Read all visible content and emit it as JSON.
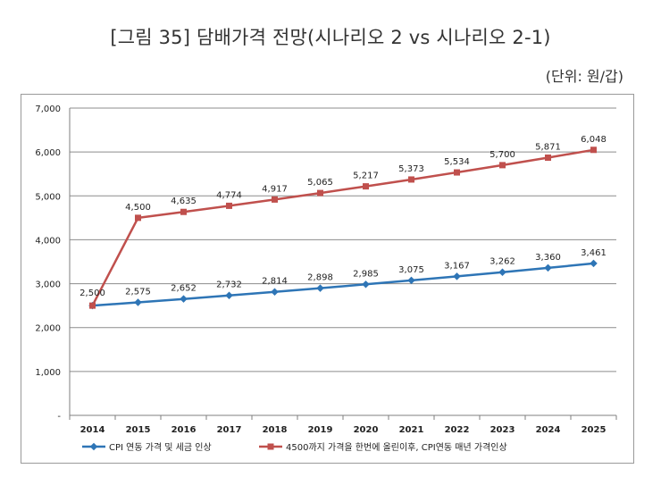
{
  "header": {
    "title": "[그림 35] 담배가격 전망(시나리오 2 vs 시나리오 2-1)",
    "unit": "(단위: 원/갑)"
  },
  "colors": {
    "series1": "#2E75B6",
    "series2": "#C0504D",
    "grid": "#8c8c8c",
    "axis": "#7f7f7f"
  },
  "chart_data": {
    "type": "line",
    "title": "",
    "xlabel": "",
    "ylabel": "",
    "categories": [
      "2014",
      "2015",
      "2016",
      "2017",
      "2018",
      "2019",
      "2020",
      "2021",
      "2022",
      "2023",
      "2024",
      "2025"
    ],
    "ylim": [
      0,
      7000
    ],
    "yticks": [
      0,
      1000,
      2000,
      3000,
      4000,
      5000,
      6000,
      7000
    ],
    "ytick_labels": [
      "-",
      "1,000",
      "2,000",
      "3,000",
      "4,000",
      "5,000",
      "6,000",
      "7,000"
    ],
    "grid": true,
    "legend_position": "bottom",
    "series": [
      {
        "name": "CPI 연동 가격 및 세금 인상",
        "marker": "diamond",
        "values": [
          2500,
          2575,
          2652,
          2732,
          2814,
          2898,
          2985,
          3075,
          3167,
          3262,
          3360,
          3461
        ],
        "labels": [
          "2,500",
          "2,575",
          "2,652",
          "2,732",
          "2,814",
          "2,898",
          "2,985",
          "3,075",
          "3,167",
          "3,262",
          "3,360",
          "3,461"
        ]
      },
      {
        "name": "4500까지 가격을 한번에 올린이후, CPI연동 매년 가격인상",
        "marker": "square",
        "values": [
          2500,
          4500,
          4635,
          4774,
          4917,
          5065,
          5217,
          5373,
          5534,
          5700,
          5871,
          6048
        ],
        "labels": [
          "2,500",
          "4,500",
          "4,635",
          "4,774",
          "4,917",
          "5,065",
          "5,217",
          "5,373",
          "5,534",
          "5,700",
          "5,871",
          "6,048"
        ]
      }
    ]
  }
}
